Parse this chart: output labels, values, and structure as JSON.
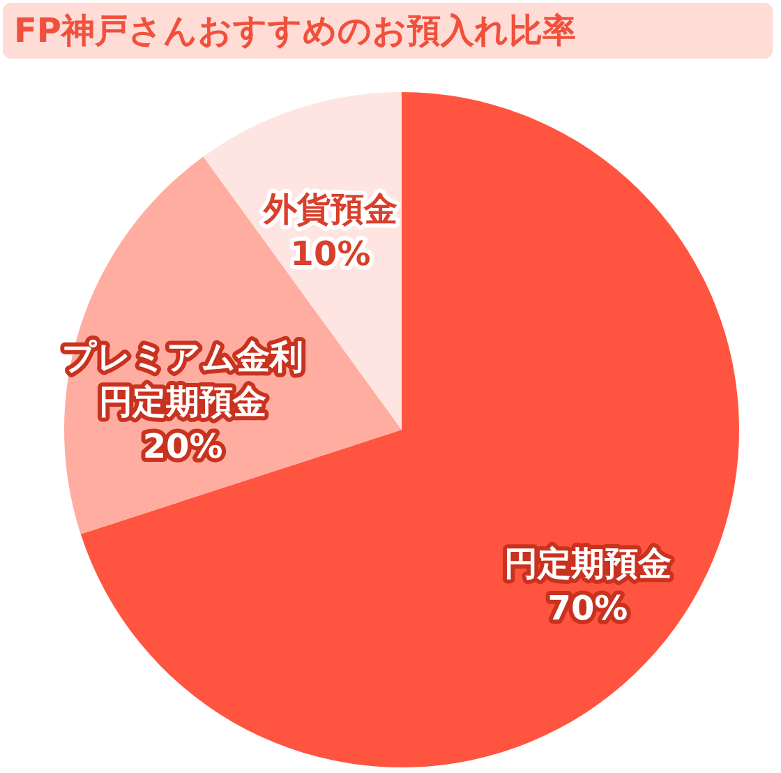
{
  "chart_data": {
    "type": "pie",
    "title": "FP神戸さんおすすめのお預入れ比率",
    "categories": [
      "円定期預金",
      "プレミアム金利円定期預金",
      "外貨預金"
    ],
    "values": [
      70,
      20,
      10
    ],
    "value_labels": [
      "70%",
      "20%",
      "10%"
    ],
    "colors": [
      "#ff5540",
      "#ffada0",
      "#ffe5e1"
    ]
  }
}
